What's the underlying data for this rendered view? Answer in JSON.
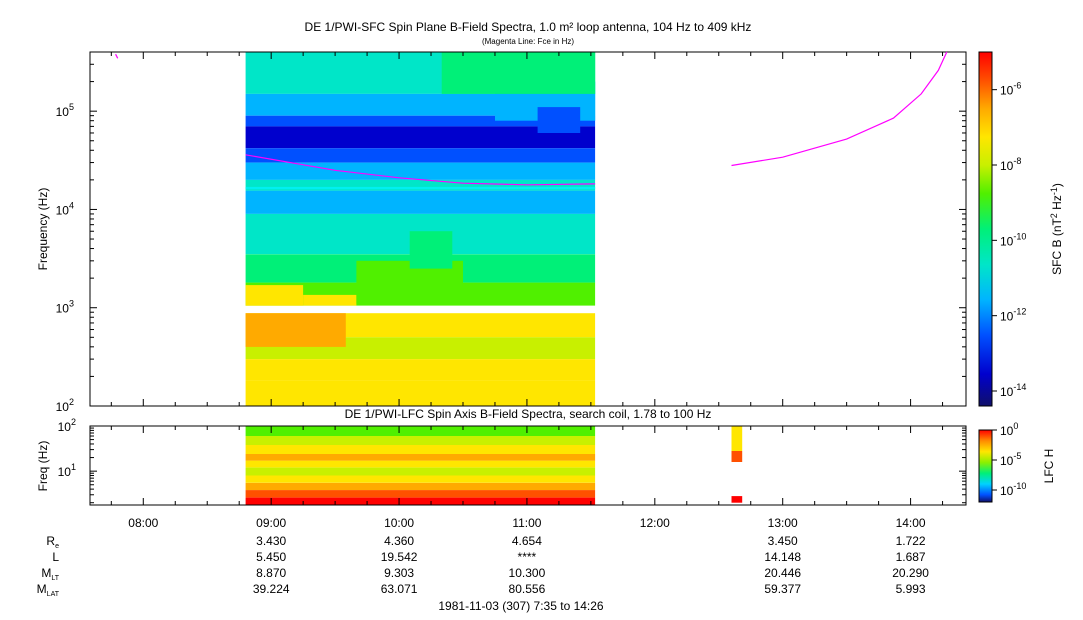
{
  "chart_data": [
    {
      "type": "heatmap",
      "title": "DE 1/PWI-SFC  Spin Plane B-Field Spectra, 1.0 m² loop antenna, 104 Hz to 409 kHz",
      "subtitle": "(Magenta Line: Fce in Hz)",
      "ylabel": "Frequency (Hz)",
      "yscale": "log",
      "ylim": [
        100,
        400000
      ],
      "ytick_exponents": [
        "2",
        "3",
        "4",
        "5"
      ],
      "xlim": [
        "07:35",
        "14:26"
      ],
      "data_extent": [
        "08:48",
        "11:32"
      ],
      "colorbar": {
        "label": "SFC B (nT",
        "label_sup1": "2",
        "label_mid": " Hz",
        "label_sup2": "-1",
        "label_end": ")",
        "scale": "log",
        "range": [
          "4e-15",
          "1e-5"
        ],
        "tick_exponents": [
          "-6",
          "-8",
          "-10",
          "-12",
          "-14"
        ]
      },
      "fce_line": {
        "color": "#ff00ff",
        "segments": [
          {
            "points": [
              [
                "07:47",
                380000
              ],
              [
                "07:48",
                345000
              ]
            ]
          },
          {
            "points": [
              [
                "08:48",
                36000
              ],
              [
                "09:30",
                25000
              ],
              [
                "10:00",
                21000
              ],
              [
                "10:30",
                18500
              ],
              [
                "11:00",
                17800
              ],
              [
                "11:32",
                18200
              ]
            ]
          },
          {
            "points": [
              [
                "12:36",
                28000
              ],
              [
                "13:00",
                34000
              ],
              [
                "13:30",
                52000
              ],
              [
                "13:52",
                85000
              ],
              [
                "14:05",
                150000
              ],
              [
                "14:13",
                260000
              ],
              [
                "14:17",
                400000
              ]
            ]
          }
        ]
      }
    },
    {
      "type": "heatmap",
      "title": "DE 1/PWI-LFC  Spin Axis B-Field Spectra, search coil, 1.78 to 100 Hz",
      "ylabel": "Freq (Hz)",
      "yscale": "log",
      "ylim": [
        1.78,
        100
      ],
      "ytick_exponents": [
        "1",
        "2"
      ],
      "colorbar": {
        "label": "LFC H",
        "scale": "log",
        "range": [
          "1e-12",
          "1e0"
        ],
        "tick_exponents": [
          "0",
          "-5",
          "-10"
        ]
      },
      "data_extent": [
        "08:48",
        "11:32"
      ],
      "extra_bursts": [
        [
          "12:36",
          "12:41"
        ]
      ]
    }
  ],
  "x_axis": {
    "ticks": [
      "08:00",
      "09:00",
      "10:00",
      "11:00",
      "12:00",
      "13:00",
      "14:00"
    ]
  },
  "ephemeris": {
    "rows": [
      {
        "label": "R",
        "label_sub": "e",
        "values": [
          "",
          "3.430",
          "4.360",
          "4.654",
          "",
          "3.450",
          "1.722"
        ]
      },
      {
        "label": "L",
        "label_sub": "",
        "values": [
          "",
          "5.450",
          "19.542",
          "****",
          "",
          "14.148",
          "1.687"
        ]
      },
      {
        "label": "M",
        "label_sub": "LT",
        "values": [
          "",
          "8.870",
          "9.303",
          "10.300",
          "",
          "20.446",
          "20.290"
        ]
      },
      {
        "label": "M",
        "label_sub": "LAT",
        "values": [
          "",
          "39.224",
          "63.071",
          "80.556",
          "",
          "59.377",
          "5.993"
        ]
      }
    ]
  },
  "footer": "1981-11-03 (307) 7:35 to 14:26",
  "colors": {
    "fce": "#ff00ff",
    "colormap": [
      "#10106a",
      "#0000cd",
      "#0050ff",
      "#00b4ff",
      "#00e6c8",
      "#00f078",
      "#50f000",
      "#c8f000",
      "#ffe600",
      "#ffaa00",
      "#ff5000",
      "#ff0000"
    ]
  }
}
